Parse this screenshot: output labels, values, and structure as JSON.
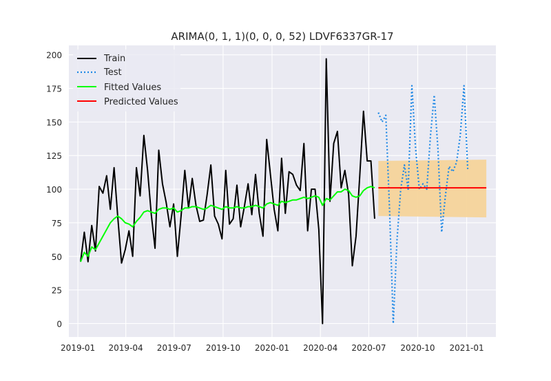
{
  "chart_data": {
    "type": "line",
    "title": "ARIMA(0, 1, 1)(0, 0, 0, 52) LDVF6337GR-17",
    "xlabel": "",
    "ylabel": "",
    "xlim": [
      "2018-12-15",
      "2021-02-25"
    ],
    "ylim": [
      -10,
      207
    ],
    "grid": true,
    "legend_position": "top-left",
    "x_ticks": [
      {
        "date": "2019-01-01",
        "label": "2019-01"
      },
      {
        "date": "2019-04-01",
        "label": "2019-04"
      },
      {
        "date": "2019-07-01",
        "label": "2019-07"
      },
      {
        "date": "2019-10-01",
        "label": "2019-10"
      },
      {
        "date": "2020-01-01",
        "label": "2020-01"
      },
      {
        "date": "2020-04-01",
        "label": "2020-04"
      },
      {
        "date": "2020-07-01",
        "label": "2020-07"
      },
      {
        "date": "2020-10-01",
        "label": "2020-10"
      },
      {
        "date": "2021-01-01",
        "label": "2021-01"
      }
    ],
    "y_ticks": [
      0,
      25,
      50,
      75,
      100,
      125,
      150,
      175,
      200
    ],
    "colors": {
      "background": "#eaeaf2",
      "grid": "#ffffff",
      "train": "#000000",
      "test": "#1e88e5",
      "fitted": "#00ff00",
      "predicted": "#ff0000",
      "confidence_band": "#f5d49a"
    },
    "series": [
      {
        "name": "Train",
        "style": "solid",
        "color": "#000000",
        "points": [
          [
            "2019-01-06",
            46
          ],
          [
            "2019-01-13",
            68
          ],
          [
            "2019-01-20",
            46
          ],
          [
            "2019-01-27",
            73
          ],
          [
            "2019-02-03",
            54
          ],
          [
            "2019-02-10",
            102
          ],
          [
            "2019-02-17",
            97
          ],
          [
            "2019-02-24",
            110
          ],
          [
            "2019-03-03",
            85
          ],
          [
            "2019-03-10",
            116
          ],
          [
            "2019-03-17",
            79
          ],
          [
            "2019-03-24",
            45
          ],
          [
            "2019-03-31",
            55
          ],
          [
            "2019-04-07",
            69
          ],
          [
            "2019-04-14",
            50
          ],
          [
            "2019-04-21",
            116
          ],
          [
            "2019-04-28",
            95
          ],
          [
            "2019-05-05",
            140
          ],
          [
            "2019-05-12",
            114
          ],
          [
            "2019-05-19",
            81
          ],
          [
            "2019-05-26",
            56
          ],
          [
            "2019-06-02",
            129
          ],
          [
            "2019-06-09",
            104
          ],
          [
            "2019-06-16",
            90
          ],
          [
            "2019-06-23",
            72
          ],
          [
            "2019-06-30",
            89
          ],
          [
            "2019-07-07",
            50
          ],
          [
            "2019-07-14",
            80
          ],
          [
            "2019-07-21",
            114
          ],
          [
            "2019-07-28",
            86
          ],
          [
            "2019-08-04",
            108
          ],
          [
            "2019-08-11",
            88
          ],
          [
            "2019-08-18",
            76
          ],
          [
            "2019-08-25",
            77
          ],
          [
            "2019-09-01",
            96
          ],
          [
            "2019-09-08",
            118
          ],
          [
            "2019-09-15",
            80
          ],
          [
            "2019-09-22",
            74
          ],
          [
            "2019-09-29",
            63
          ],
          [
            "2019-10-06",
            114
          ],
          [
            "2019-10-13",
            74
          ],
          [
            "2019-10-20",
            78
          ],
          [
            "2019-10-27",
            103
          ],
          [
            "2019-11-03",
            72
          ],
          [
            "2019-11-10",
            87
          ],
          [
            "2019-11-17",
            104
          ],
          [
            "2019-11-24",
            81
          ],
          [
            "2019-12-01",
            111
          ],
          [
            "2019-12-08",
            82
          ],
          [
            "2019-12-15",
            65
          ],
          [
            "2019-12-22",
            137
          ],
          [
            "2019-12-29",
            111
          ],
          [
            "2020-01-05",
            85
          ],
          [
            "2020-01-12",
            69
          ],
          [
            "2020-01-19",
            123
          ],
          [
            "2020-01-26",
            82
          ],
          [
            "2020-02-02",
            113
          ],
          [
            "2020-02-09",
            111
          ],
          [
            "2020-02-16",
            103
          ],
          [
            "2020-02-23",
            99
          ],
          [
            "2020-03-01",
            134
          ],
          [
            "2020-03-08",
            69
          ],
          [
            "2020-03-15",
            100
          ],
          [
            "2020-03-22",
            100
          ],
          [
            "2020-03-29",
            70
          ],
          [
            "2020-04-05",
            0
          ],
          [
            "2020-04-12",
            197
          ],
          [
            "2020-04-19",
            91
          ],
          [
            "2020-04-26",
            134
          ],
          [
            "2020-05-03",
            143
          ],
          [
            "2020-05-10",
            101
          ],
          [
            "2020-05-17",
            114
          ],
          [
            "2020-05-24",
            96
          ],
          [
            "2020-05-31",
            43
          ],
          [
            "2020-06-07",
            65
          ],
          [
            "2020-06-14",
            110
          ],
          [
            "2020-06-21",
            158
          ],
          [
            "2020-06-28",
            121
          ],
          [
            "2020-07-05",
            121
          ],
          [
            "2020-07-12",
            78
          ]
        ]
      },
      {
        "name": "Test",
        "style": "dotted",
        "color": "#1e88e5",
        "points": [
          [
            "2020-07-19",
            157
          ],
          [
            "2020-07-26",
            150
          ],
          [
            "2020-08-02",
            155
          ],
          [
            "2020-08-09",
            85
          ],
          [
            "2020-08-16",
            0
          ],
          [
            "2020-08-23",
            62
          ],
          [
            "2020-08-30",
            100
          ],
          [
            "2020-09-06",
            118
          ],
          [
            "2020-09-13",
            100
          ],
          [
            "2020-09-20",
            177
          ],
          [
            "2020-09-27",
            130
          ],
          [
            "2020-10-04",
            100
          ],
          [
            "2020-10-11",
            104
          ],
          [
            "2020-10-18",
            100
          ],
          [
            "2020-10-25",
            140
          ],
          [
            "2020-11-01",
            170
          ],
          [
            "2020-11-08",
            130
          ],
          [
            "2020-11-15",
            68
          ],
          [
            "2020-11-22",
            95
          ],
          [
            "2020-11-29",
            117
          ],
          [
            "2020-12-06",
            113
          ],
          [
            "2020-12-13",
            120
          ],
          [
            "2020-12-20",
            140
          ],
          [
            "2020-12-27",
            177
          ],
          [
            "2021-01-03",
            115
          ]
        ]
      },
      {
        "name": "Fitted Values",
        "style": "solid",
        "color": "#00ff00",
        "points": [
          [
            "2019-01-06",
            46
          ],
          [
            "2019-01-13",
            53
          ],
          [
            "2019-01-20",
            50
          ],
          [
            "2019-01-27",
            57
          ],
          [
            "2019-02-03",
            55
          ],
          [
            "2019-02-10",
            60
          ],
          [
            "2019-02-17",
            65
          ],
          [
            "2019-02-24",
            70
          ],
          [
            "2019-03-03",
            75
          ],
          [
            "2019-03-10",
            78
          ],
          [
            "2019-03-17",
            80
          ],
          [
            "2019-03-24",
            78
          ],
          [
            "2019-03-31",
            75
          ],
          [
            "2019-04-07",
            74
          ],
          [
            "2019-04-14",
            72
          ],
          [
            "2019-04-21",
            76
          ],
          [
            "2019-04-28",
            79
          ],
          [
            "2019-05-05",
            83
          ],
          [
            "2019-05-12",
            84
          ],
          [
            "2019-05-19",
            83
          ],
          [
            "2019-05-26",
            82
          ],
          [
            "2019-06-02",
            85
          ],
          [
            "2019-06-09",
            86
          ],
          [
            "2019-06-16",
            86
          ],
          [
            "2019-06-23",
            85
          ],
          [
            "2019-06-30",
            86
          ],
          [
            "2019-07-07",
            83
          ],
          [
            "2019-07-14",
            84
          ],
          [
            "2019-07-21",
            86
          ],
          [
            "2019-07-28",
            86
          ],
          [
            "2019-08-04",
            87
          ],
          [
            "2019-08-11",
            87
          ],
          [
            "2019-08-18",
            86
          ],
          [
            "2019-08-25",
            85
          ],
          [
            "2019-09-01",
            86
          ],
          [
            "2019-09-08",
            88
          ],
          [
            "2019-09-15",
            87
          ],
          [
            "2019-09-22",
            86
          ],
          [
            "2019-09-29",
            85
          ],
          [
            "2019-10-06",
            87
          ],
          [
            "2019-10-13",
            86
          ],
          [
            "2019-10-20",
            86
          ],
          [
            "2019-10-27",
            87
          ],
          [
            "2019-11-03",
            86
          ],
          [
            "2019-11-10",
            86
          ],
          [
            "2019-11-17",
            87
          ],
          [
            "2019-11-24",
            87
          ],
          [
            "2019-12-01",
            88
          ],
          [
            "2019-12-08",
            87
          ],
          [
            "2019-12-15",
            86
          ],
          [
            "2019-12-22",
            89
          ],
          [
            "2019-12-29",
            90
          ],
          [
            "2020-01-05",
            89
          ],
          [
            "2020-01-12",
            88
          ],
          [
            "2020-01-19",
            91
          ],
          [
            "2020-01-26",
            90
          ],
          [
            "2020-02-02",
            91
          ],
          [
            "2020-02-09",
            92
          ],
          [
            "2020-02-16",
            92
          ],
          [
            "2020-02-23",
            93
          ],
          [
            "2020-03-01",
            94
          ],
          [
            "2020-03-08",
            93
          ],
          [
            "2020-03-15",
            94
          ],
          [
            "2020-03-22",
            95
          ],
          [
            "2020-03-29",
            94
          ],
          [
            "2020-04-05",
            88
          ],
          [
            "2020-04-12",
            93
          ],
          [
            "2020-04-19",
            92
          ],
          [
            "2020-04-26",
            95
          ],
          [
            "2020-05-03",
            98
          ],
          [
            "2020-05-10",
            98
          ],
          [
            "2020-05-17",
            100
          ],
          [
            "2020-05-24",
            99
          ],
          [
            "2020-05-31",
            95
          ],
          [
            "2020-06-07",
            94
          ],
          [
            "2020-06-14",
            95
          ],
          [
            "2020-06-21",
            99
          ],
          [
            "2020-06-28",
            101
          ],
          [
            "2020-07-05",
            102
          ],
          [
            "2020-07-12",
            101
          ]
        ]
      },
      {
        "name": "Predicted Values",
        "style": "solid",
        "color": "#ff0000",
        "points": [
          [
            "2020-07-19",
            101
          ],
          [
            "2021-02-07",
            101
          ]
        ]
      }
    ],
    "confidence_band": {
      "x_start": "2020-07-19",
      "x_end": "2021-02-07",
      "lower_start": 80,
      "lower_end": 79,
      "upper_start": 121,
      "upper_end": 122
    }
  }
}
